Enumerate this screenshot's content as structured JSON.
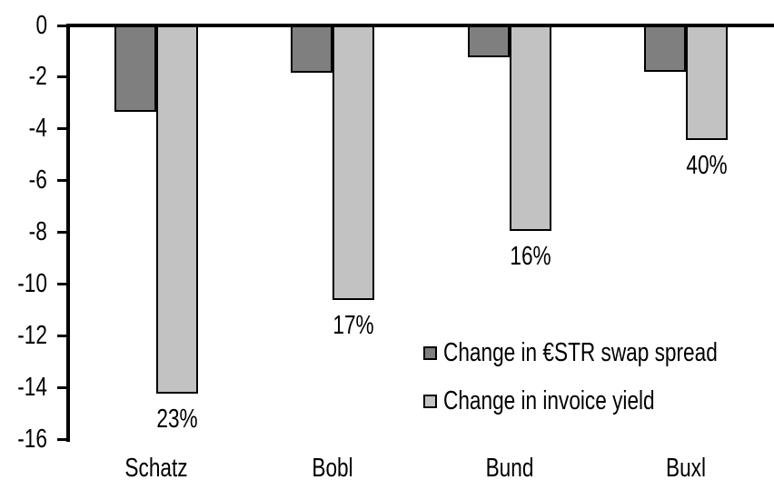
{
  "chart_data": {
    "type": "bar",
    "title": "",
    "xlabel": "",
    "ylabel": "",
    "categories": [
      "Schatz",
      "Bobl",
      "Bund",
      "Buxl"
    ],
    "series": [
      {
        "name": "Change in €STR swap spread",
        "color": "#7f7f7f",
        "values": [
          -3.3,
          -1.8,
          -1.2,
          -1.75
        ]
      },
      {
        "name": "Change in invoice yield",
        "color": "#c2c2c2",
        "values": [
          -14.2,
          -10.6,
          -7.9,
          -4.4
        ]
      }
    ],
    "bar_labels": {
      "series": "Change in invoice yield",
      "values": [
        "23%",
        "17%",
        "16%",
        "40%"
      ]
    },
    "ylim": [
      -16,
      0
    ],
    "yticks": [
      0,
      -2,
      -4,
      -6,
      -8,
      -10,
      -12,
      -14,
      -16
    ],
    "grid": false,
    "legend_position": "inside-right",
    "axis_color": "#000000",
    "background_color": "#ffffff"
  }
}
